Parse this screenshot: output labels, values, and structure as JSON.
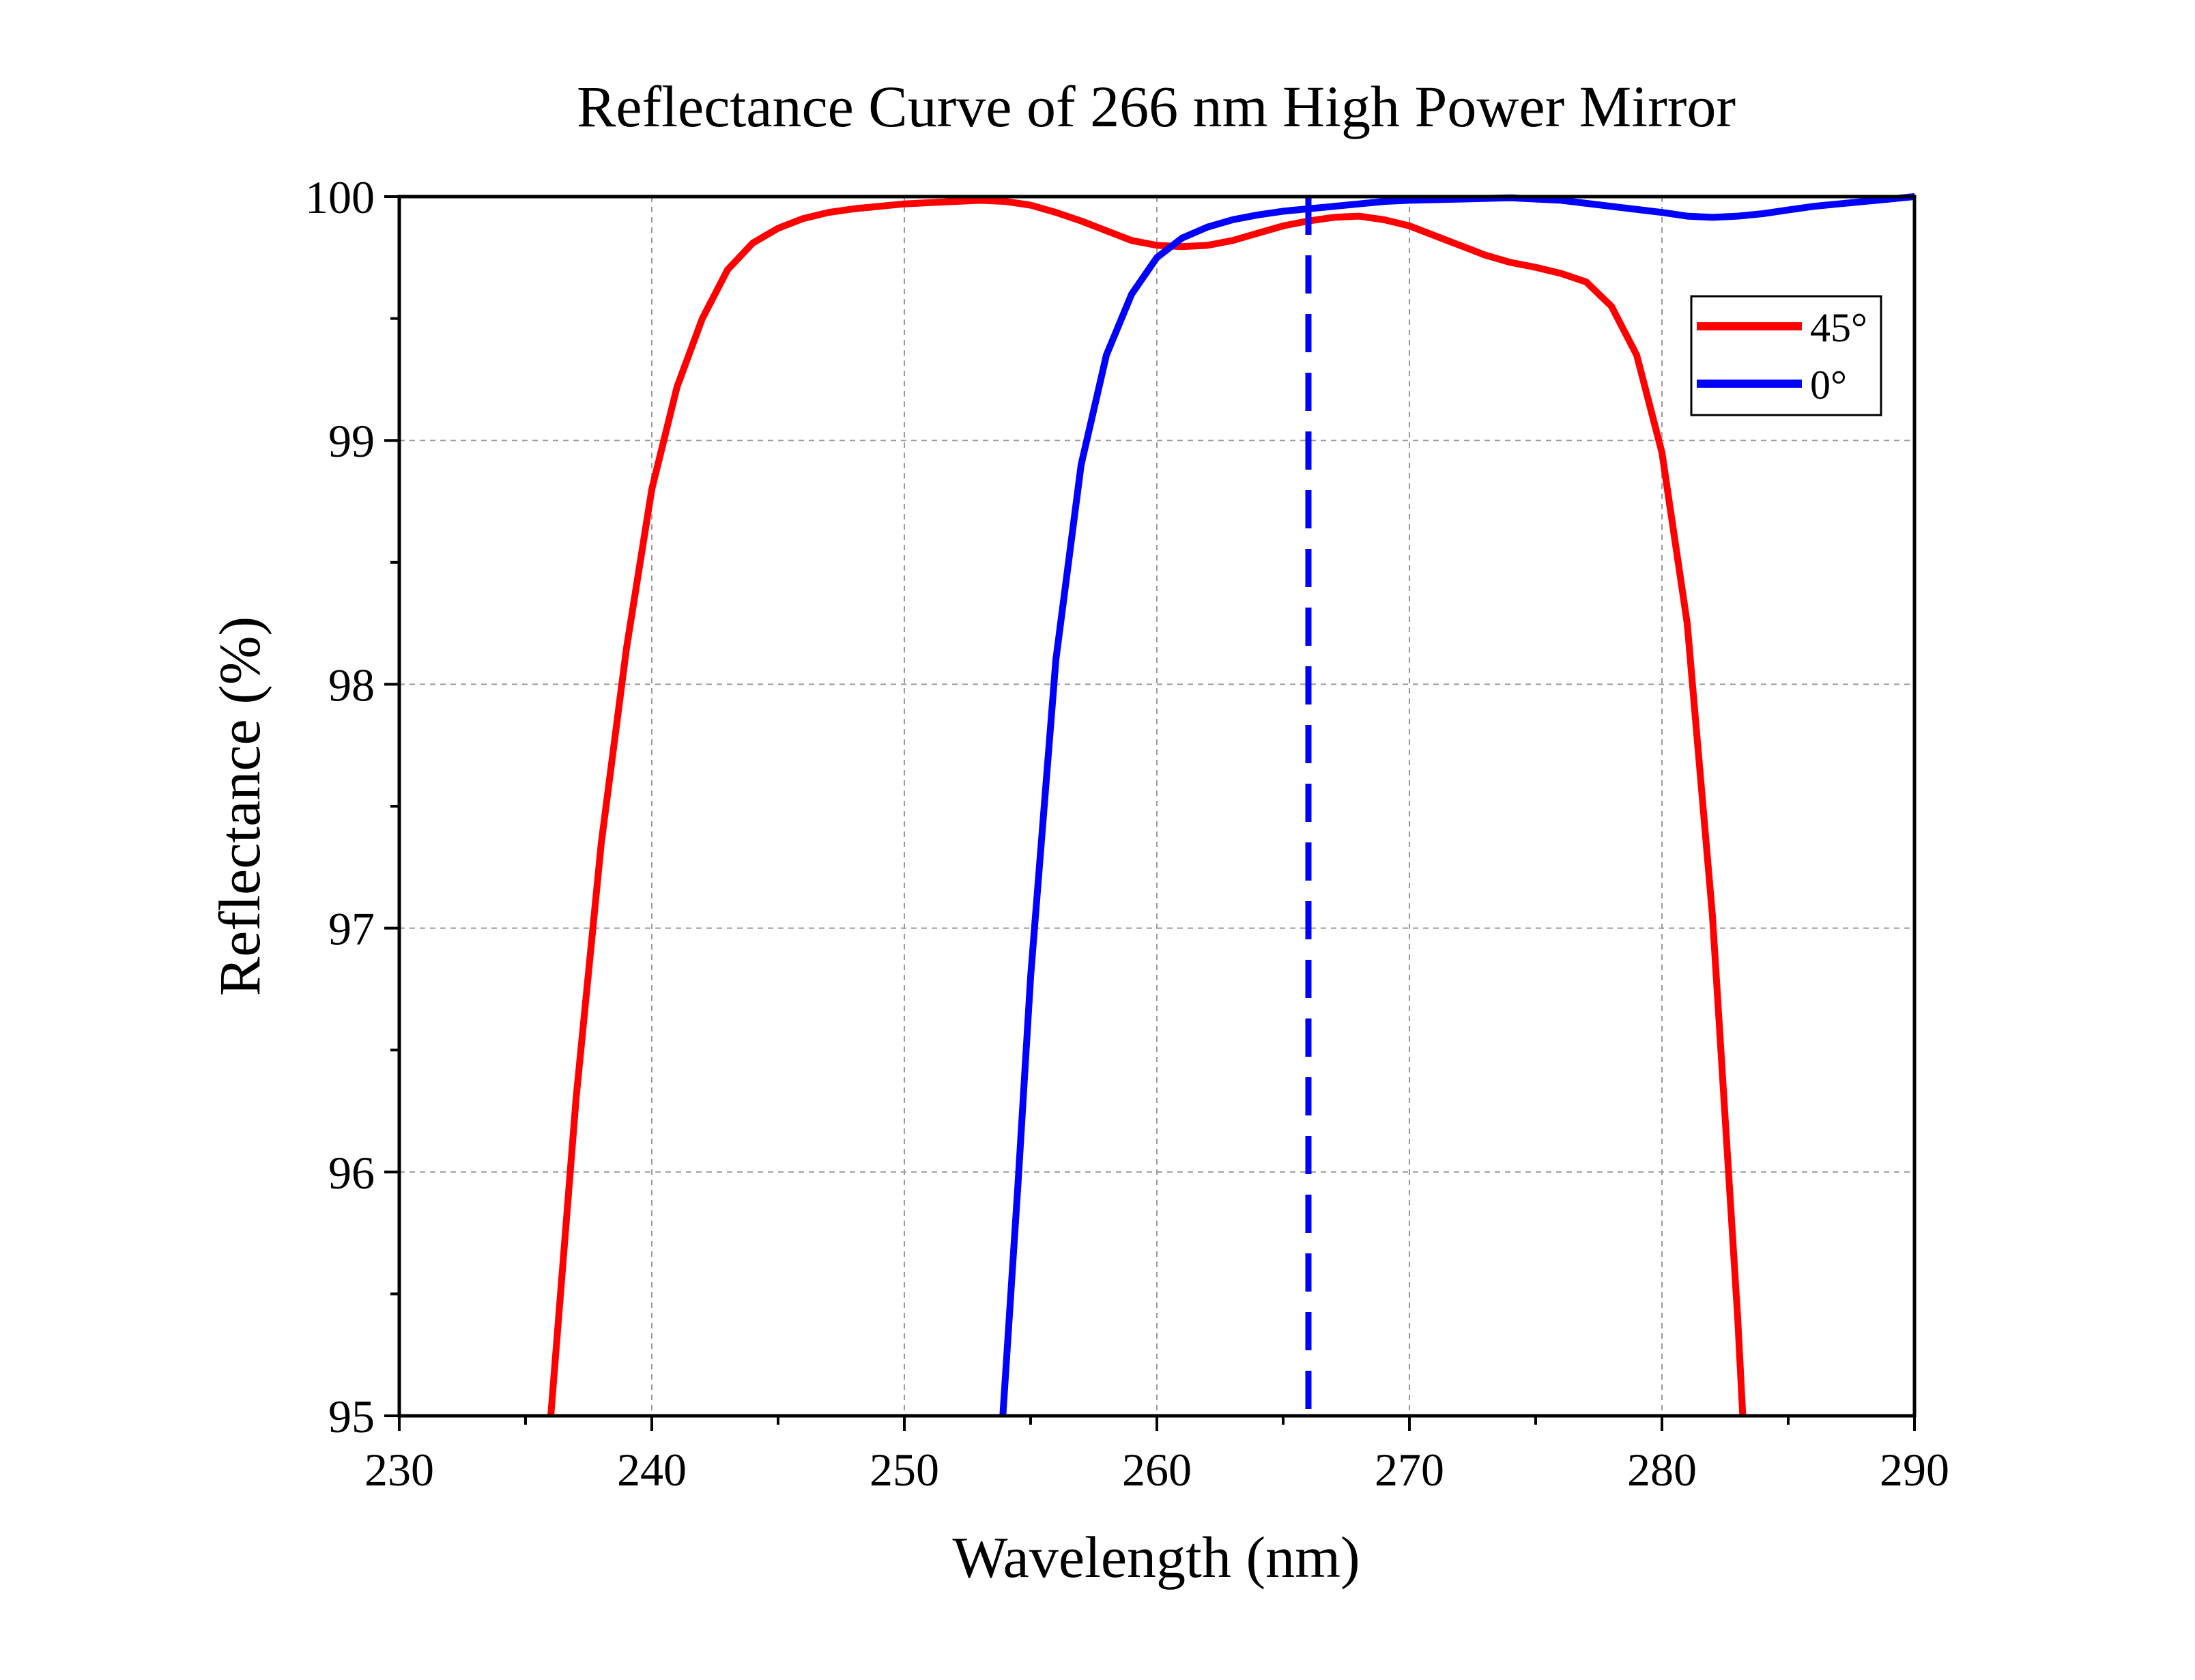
{
  "chart_data": {
    "type": "line",
    "title": "Reflectance Curve of 266 nm High Power Mirror",
    "xlabel": "Wavelength (nm)",
    "ylabel": "Reflectance (%)",
    "xlim": [
      230,
      290
    ],
    "ylim": [
      95,
      100
    ],
    "xticks": [
      230,
      240,
      250,
      260,
      270,
      280,
      290
    ],
    "yticks": [
      95,
      96,
      97,
      98,
      99,
      100
    ],
    "grid": true,
    "legend_position": "top-right",
    "series": [
      {
        "name": "45°",
        "color": "#ff0000",
        "x": [
          236,
          237,
          238,
          239,
          240,
          241,
          242,
          243,
          244,
          245,
          246,
          247,
          248,
          249,
          250,
          251,
          252,
          253,
          254,
          255,
          256,
          257,
          258,
          259,
          260,
          261,
          262,
          263,
          264,
          265,
          266,
          267,
          268,
          269,
          270,
          271,
          272,
          273,
          274,
          275,
          276,
          277,
          278,
          279,
          280,
          281,
          282,
          283,
          283.2
        ],
        "y": [
          95.0,
          96.3,
          97.35,
          98.15,
          98.8,
          99.22,
          99.5,
          99.7,
          99.81,
          99.87,
          99.91,
          99.935,
          99.95,
          99.96,
          99.97,
          99.975,
          99.98,
          99.985,
          99.98,
          99.965,
          99.935,
          99.9,
          99.86,
          99.82,
          99.8,
          99.795,
          99.8,
          99.82,
          99.85,
          99.88,
          99.9,
          99.915,
          99.92,
          99.905,
          99.88,
          99.84,
          99.8,
          99.76,
          99.73,
          99.71,
          99.685,
          99.65,
          99.55,
          99.35,
          98.95,
          98.25,
          97.05,
          95.4,
          95.0
        ]
      },
      {
        "name": "0°",
        "color": "#0000ff",
        "x": [
          253.9,
          254.5,
          255,
          256,
          257,
          258,
          259,
          260,
          261,
          262,
          263,
          264,
          265,
          266,
          267,
          268,
          269,
          270,
          272,
          274,
          276,
          278,
          280,
          281,
          282,
          283,
          284,
          285,
          286,
          287,
          288,
          289,
          290
        ],
        "y": [
          95.0,
          95.95,
          96.8,
          98.1,
          98.9,
          99.35,
          99.6,
          99.75,
          99.83,
          99.875,
          99.905,
          99.925,
          99.94,
          99.95,
          99.96,
          99.97,
          99.98,
          99.985,
          99.99,
          99.995,
          99.985,
          99.96,
          99.935,
          99.92,
          99.915,
          99.92,
          99.93,
          99.945,
          99.96,
          99.97,
          99.98,
          99.99,
          100.0
        ]
      }
    ],
    "annotations": [
      {
        "type": "vline",
        "x": 266,
        "style": "dashed",
        "color": "#0000ff"
      }
    ]
  }
}
